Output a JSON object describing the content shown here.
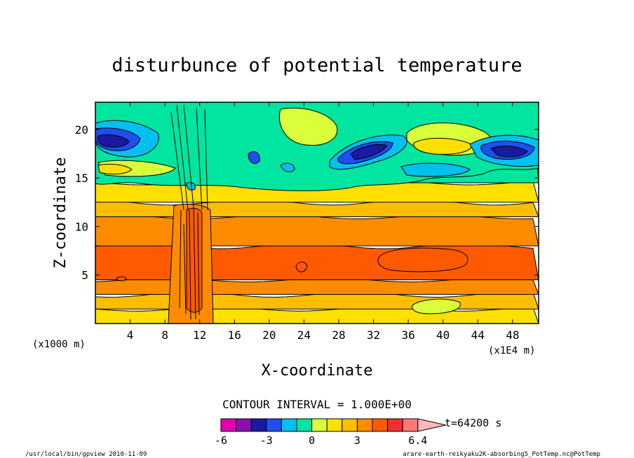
{
  "chart_data": {
    "type": "heatmap",
    "title": "disturbunce of potential temperature",
    "xlabel": "X-coordinate",
    "ylabel": "Z-coordinate",
    "x_units_left": "(x1000 m)",
    "x_units_right": "(x1E4 m)",
    "xlim": [
      0,
      51
    ],
    "ylim": [
      0,
      22.8
    ],
    "xticks": [
      4,
      8,
      12,
      16,
      20,
      24,
      28,
      32,
      36,
      40,
      44,
      48
    ],
    "yticks": [
      5,
      10,
      15,
      20
    ],
    "contour_interval_label": "CONTOUR INTERVAL = 1.000E+00",
    "time_label": "t=64200 s",
    "colorbar": {
      "levels": [
        -6,
        -5,
        -4,
        -3,
        -2,
        -1,
        0,
        1,
        2,
        3,
        4,
        5,
        6,
        6.4
      ],
      "tick_labels": [
        "-6",
        "-3",
        "0",
        "3",
        "6.4"
      ],
      "colors": [
        "#e000b0",
        "#8a10b0",
        "#1a1aa0",
        "#1e4ff0",
        "#00c0f0",
        "#00e5a0",
        "#d8ff3a",
        "#ffe000",
        "#ffbe00",
        "#ff8c00",
        "#ff5a00",
        "#f03030",
        "#ff7878",
        "#ffb8b8"
      ]
    },
    "layers": [
      {
        "z_range": [
          0,
          1.5
        ],
        "value_band": [
          1,
          2
        ]
      },
      {
        "z_range": [
          1.5,
          3
        ],
        "value_band": [
          2,
          3
        ]
      },
      {
        "z_range": [
          3,
          4.5
        ],
        "value_band": [
          3,
          4
        ]
      },
      {
        "z_range": [
          4.5,
          8
        ],
        "value_band": [
          4,
          5
        ]
      },
      {
        "z_range": [
          8,
          11
        ],
        "value_band": [
          3,
          4
        ]
      },
      {
        "z_range": [
          11,
          12.5
        ],
        "value_band": [
          2,
          3
        ]
      },
      {
        "z_range": [
          12.5,
          14.5
        ],
        "value_band": [
          1,
          2
        ]
      },
      {
        "z_range": [
          14.5,
          22.8
        ],
        "value_band": [
          -1,
          1
        ]
      }
    ],
    "extrema": [
      {
        "x": 37,
        "z": 6.5,
        "value_band": [
          5,
          6
        ]
      },
      {
        "x": 3,
        "z": 4.7,
        "value_band": [
          5,
          6
        ]
      },
      {
        "x": 39,
        "z": 1.8,
        "value_band": [
          0,
          1
        ]
      },
      {
        "x": 3,
        "z": 18.5,
        "value_band": [
          -4,
          -3
        ]
      },
      {
        "x": 46,
        "z": 17.8,
        "value_band": [
          -4,
          -3
        ]
      },
      {
        "x": 31,
        "z": 18,
        "value_band": [
          -4,
          -3
        ]
      }
    ]
  },
  "footer": {
    "left": "/usr/local/bin/gpview  2010-11-09",
    "right": "arare-earth-reikyaku2K-absorbing5_PotTemp.nc@PotTemp"
  }
}
